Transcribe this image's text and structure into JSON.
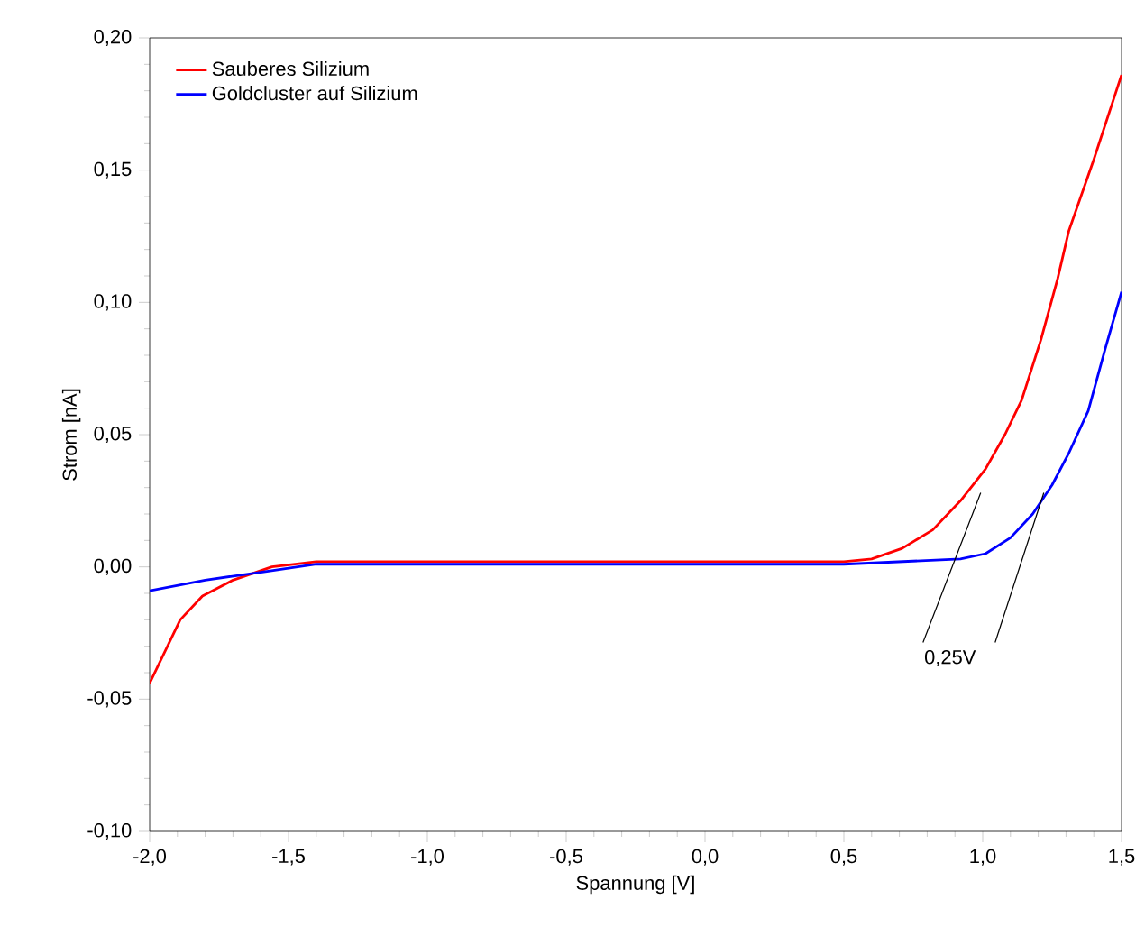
{
  "chart_data": {
    "type": "line",
    "xlabel": "Spannung [V]",
    "ylabel": "Strom [nA]",
    "xlim": [
      -2.0,
      1.5
    ],
    "ylim": [
      -0.1,
      0.2
    ],
    "xticks": [
      {
        "value": -2.0,
        "label": "-2,0"
      },
      {
        "value": -1.5,
        "label": "-1,5"
      },
      {
        "value": -1.0,
        "label": "-1,0"
      },
      {
        "value": -0.5,
        "label": "-0,5"
      },
      {
        "value": 0.0,
        "label": "0,0"
      },
      {
        "value": 0.5,
        "label": "0,5"
      },
      {
        "value": 1.0,
        "label": "1,0"
      },
      {
        "value": 1.5,
        "label": "1,5"
      }
    ],
    "yticks": [
      {
        "value": -0.1,
        "label": "-0,10"
      },
      {
        "value": -0.05,
        "label": "-0,05"
      },
      {
        "value": 0.0,
        "label": "0,00"
      },
      {
        "value": 0.05,
        "label": "0,05"
      },
      {
        "value": 0.1,
        "label": "0,10"
      },
      {
        "value": 0.15,
        "label": "0,15"
      },
      {
        "value": 0.2,
        "label": "0,20"
      }
    ],
    "legend": "top left",
    "grid": false,
    "marker": "none",
    "line_style": "solid",
    "annotations": [
      {
        "text": "0,25V",
        "x": 1.22,
        "y": 0.028
      }
    ],
    "series": [
      {
        "name": "Sauberes Silizium",
        "color": "#ff0000",
        "x": [
          -2.0,
          -1.89,
          -1.81,
          -1.7,
          -1.56,
          -1.4,
          -1.0,
          -0.5,
          0.0,
          0.5,
          0.6,
          0.71,
          0.82,
          0.92,
          1.01,
          1.08,
          1.14,
          1.21,
          1.27,
          1.31,
          1.4,
          1.5
        ],
        "values": [
          -0.044,
          -0.02,
          -0.011,
          -0.005,
          0.0,
          0.002,
          0.002,
          0.002,
          0.002,
          0.002,
          0.003,
          0.007,
          0.014,
          0.025,
          0.037,
          0.05,
          0.063,
          0.086,
          0.109,
          0.127,
          0.154,
          0.186
        ]
      },
      {
        "name": "Goldcluster auf Silizium",
        "color": "#0000ff",
        "x": [
          -2.0,
          -1.8,
          -1.6,
          -1.4,
          -1.0,
          -0.5,
          0.0,
          0.5,
          0.92,
          1.01,
          1.1,
          1.18,
          1.25,
          1.31,
          1.38,
          1.44,
          1.5
        ],
        "values": [
          -0.009,
          -0.005,
          -0.002,
          0.001,
          0.001,
          0.001,
          0.001,
          0.001,
          0.003,
          0.005,
          0.011,
          0.02,
          0.031,
          0.043,
          0.059,
          0.082,
          0.104
        ]
      }
    ]
  }
}
